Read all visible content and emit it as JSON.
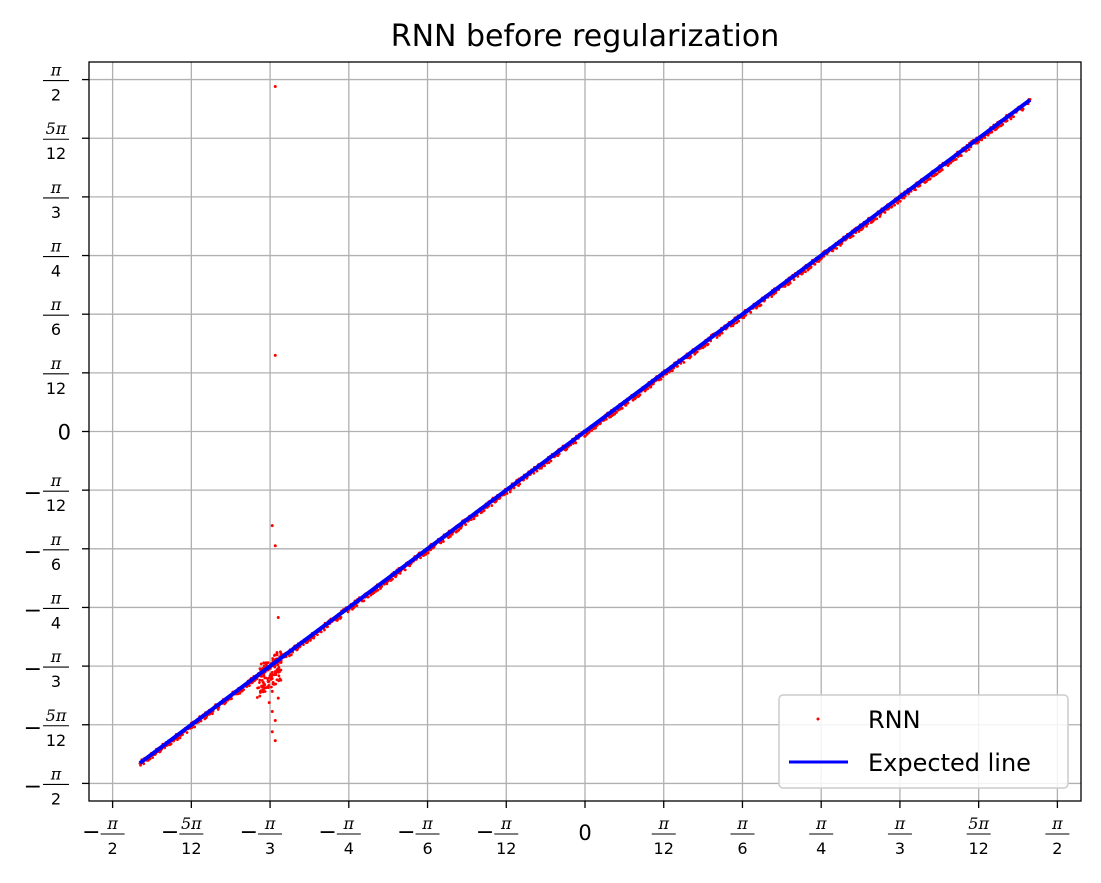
{
  "chart_data": {
    "type": "scatter",
    "title": "RNN before regularization",
    "xlabel": "",
    "ylabel": "",
    "xlim": [
      -1.6493,
      1.6493
    ],
    "ylim": [
      -1.6493,
      1.6493
    ],
    "grid": true,
    "legend_position": "lower-right",
    "x_ticks": [
      {
        "value": -1.5708,
        "sign": "−",
        "num": "π",
        "den": "2"
      },
      {
        "value": -1.309,
        "sign": "−",
        "num": "5π",
        "den": "12"
      },
      {
        "value": -1.0472,
        "sign": "−",
        "num": "π",
        "den": "3"
      },
      {
        "value": -0.7854,
        "sign": "−",
        "num": "π",
        "den": "4"
      },
      {
        "value": -0.5236,
        "sign": "−",
        "num": "π",
        "den": "6"
      },
      {
        "value": -0.2618,
        "sign": "−",
        "num": "π",
        "den": "12"
      },
      {
        "value": 0,
        "sign": "",
        "num": "",
        "den": "",
        "plain": "0"
      },
      {
        "value": 0.2618,
        "sign": "",
        "num": "π",
        "den": "12"
      },
      {
        "value": 0.5236,
        "sign": "",
        "num": "π",
        "den": "6"
      },
      {
        "value": 0.7854,
        "sign": "",
        "num": "π",
        "den": "4"
      },
      {
        "value": 1.0472,
        "sign": "",
        "num": "π",
        "den": "3"
      },
      {
        "value": 1.309,
        "sign": "",
        "num": "5π",
        "den": "12"
      },
      {
        "value": 1.5708,
        "sign": "",
        "num": "π",
        "den": "2"
      }
    ],
    "y_ticks": [
      {
        "value": -1.5708,
        "sign": "−",
        "num": "π",
        "den": "2"
      },
      {
        "value": -1.309,
        "sign": "−",
        "num": "5π",
        "den": "12"
      },
      {
        "value": -1.0472,
        "sign": "−",
        "num": "π",
        "den": "3"
      },
      {
        "value": -0.7854,
        "sign": "−",
        "num": "π",
        "den": "4"
      },
      {
        "value": -0.5236,
        "sign": "−",
        "num": "π",
        "den": "6"
      },
      {
        "value": -0.2618,
        "sign": "−",
        "num": "π",
        "den": "12"
      },
      {
        "value": 0,
        "sign": "",
        "num": "",
        "den": "",
        "plain": "0"
      },
      {
        "value": 0.2618,
        "sign": "",
        "num": "π",
        "den": "12"
      },
      {
        "value": 0.5236,
        "sign": "",
        "num": "π",
        "den": "6"
      },
      {
        "value": 0.7854,
        "sign": "",
        "num": "π",
        "den": "4"
      },
      {
        "value": 1.0472,
        "sign": "",
        "num": "π",
        "den": "3"
      },
      {
        "value": 1.309,
        "sign": "",
        "num": "5π",
        "den": "12"
      },
      {
        "value": 1.5708,
        "sign": "",
        "num": "π",
        "den": "2"
      }
    ],
    "series": [
      {
        "name": "RNN",
        "kind": "scatter",
        "color": "#ff0000",
        "x_range": [
          -1.48,
          1.48
        ],
        "outliers": [
          [
            -1.03,
            1.54
          ],
          [
            -1.03,
            0.34
          ],
          [
            -1.04,
            -0.42
          ],
          [
            -1.03,
            -0.51
          ],
          [
            -1.02,
            -0.83
          ],
          [
            -1.05,
            -1.1
          ],
          [
            -1.04,
            -1.16
          ],
          [
            -1.05,
            -1.21
          ],
          [
            -1.04,
            -1.25
          ],
          [
            -1.03,
            -1.29
          ],
          [
            -1.04,
            -1.34
          ],
          [
            -1.03,
            -1.38
          ],
          [
            -1.07,
            -1.12
          ],
          [
            -1.02,
            -1.19
          ]
        ],
        "cluster_center": [
          -1.05,
          -1.06
        ]
      },
      {
        "name": "Expected line",
        "kind": "line",
        "color": "#0000ff",
        "x": [
          -1.48,
          1.48
        ],
        "y": [
          -1.48,
          1.48
        ]
      }
    ]
  }
}
